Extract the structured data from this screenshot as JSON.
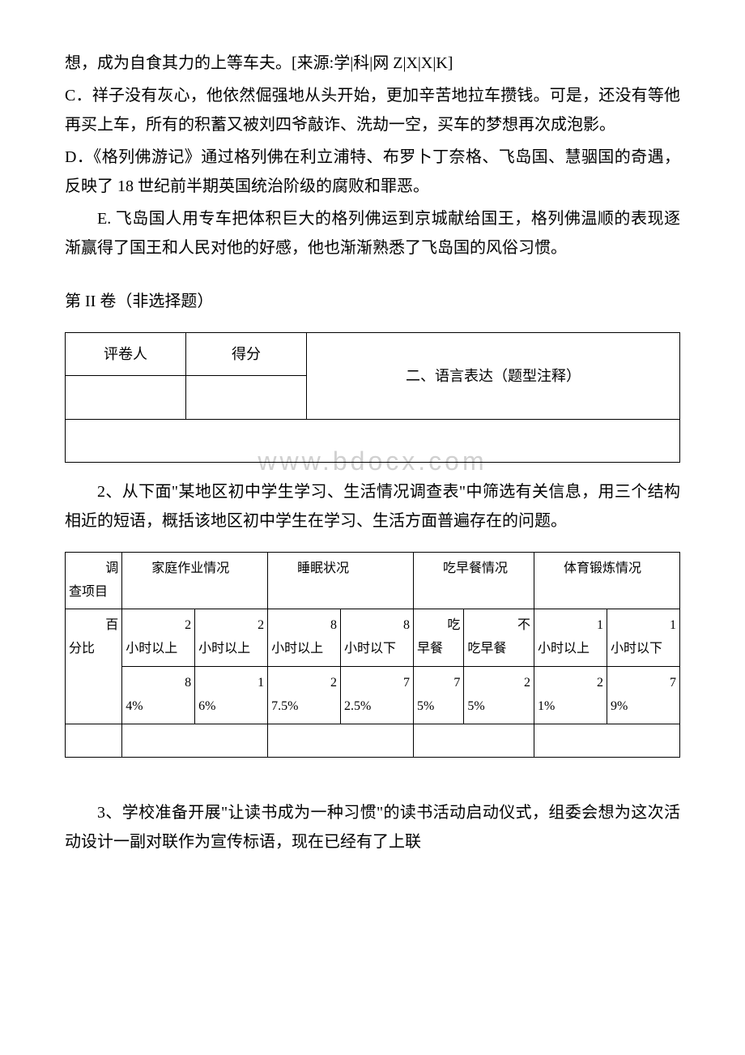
{
  "para_b_cont": "想，成为自食其力的上等车夫。[来源:学|科|网 Z|X|X|K]",
  "para_c": "C．祥子没有灰心，他依然倔强地从头开始，更加辛苦地拉车攒钱。可是，还没有等他再买上车，所有的积蓄又被刘四爷敲诈、洗劫一空，买车的梦想再次成泡影。",
  "para_d": "D．《格列佛游记》通过格列佛在利立浦特、布罗卜丁奈格、飞岛国、慧骃国的奇遇，反映了 18 世纪前半期英国统治阶级的腐败和罪恶。",
  "para_e": "E. 飞岛国人用专车把体积巨大的格列佛运到京城献给国王，格列佛温顺的表现逐渐赢得了国王和人民对他的好感，他也渐渐熟悉了飞岛国的风俗习惯。",
  "section2_title": "第 II 卷（非选择题）",
  "grade_table": {
    "grader": "评卷人",
    "score": "得分",
    "section_label": "二、语言表达（题型注释）"
  },
  "watermark": "www.bdocx.com",
  "q2_text": "2、从下面\"某地区初中学生学习、生活情况调查表\"中筛选有关信息，用三个结构相近的短语，概括该地区初中学生在学习、生活方面普遍存在的问题。",
  "survey_table": {
    "row1": {
      "c1a": "调",
      "c1b": "查项目",
      "c2": "家庭作业情况",
      "c3": "睡眠状况",
      "c4": "吃早餐情况",
      "c5": "体育锻炼情况"
    },
    "row2": {
      "c1a": "百",
      "c1b": "分比",
      "c2a_top": "2",
      "c2a_bot": "小时以上",
      "c2b_top": "2",
      "c2b_bot": "小时以上",
      "c3a_top": "8",
      "c3a_bot": "小时以上",
      "c3b_top": "8",
      "c3b_bot": "小时以下",
      "c4a_top": "吃",
      "c4a_bot": "早餐",
      "c4b_top": "不",
      "c4b_bot": "吃早餐",
      "c5a_top": "1",
      "c5a_bot": "小时以上",
      "c5b_top": "1",
      "c5b_bot": "小时以下"
    },
    "row3": {
      "c2a_top": "8",
      "c2a_bot": "4%",
      "c2b_top": "1",
      "c2b_bot": "6%",
      "c3a_top": "2",
      "c3a_bot": "7.5%",
      "c3b_top": "7",
      "c3b_bot": "2.5%",
      "c4a_top": "7",
      "c4a_bot": "5%",
      "c4b_top": "2",
      "c4b_bot": "5%",
      "c5a_top": "2",
      "c5a_bot": "1%",
      "c5b_top": "7",
      "c5b_bot": "9%"
    }
  },
  "q3_text": "3、学校准备开展\"让读书成为一种习惯\"的读书活动启动仪式，组委会想为这次活动设计一副对联作为宣传标语，现在已经有了上联"
}
